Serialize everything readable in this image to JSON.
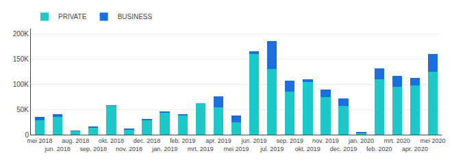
{
  "chart_data": {
    "type": "bar",
    "stacked": true,
    "categories": [
      "mei 2018",
      "jun. 2018",
      "aug. 2018",
      "sep. 2018",
      "okt. 2018",
      "nov. 2018",
      "dec. 2018",
      "jan. 2019",
      "feb. 2019",
      "mrt. 2019",
      "apr. 2019",
      "mei 2019",
      "jun. 2019",
      "jul. 2019",
      "sep. 2019",
      "okt. 2019",
      "nov. 2019",
      "dec. 2019",
      "jan. 2020",
      "feb. 2020",
      "mrt. 2020",
      "apr. 2020",
      "mei 2020"
    ],
    "series": [
      {
        "name": "PRIVATE",
        "color": "#1dc8c8",
        "values": [
          29000,
          35000,
          7000,
          13000,
          57000,
          10000,
          28000,
          44000,
          38000,
          62000,
          54000,
          25000,
          160000,
          130000,
          85000,
          105000,
          75000,
          57000,
          3000,
          110000,
          95000,
          97000,
          125000
        ]
      },
      {
        "name": "BUSINESS",
        "color": "#1b6edc",
        "values": [
          6000,
          5000,
          1000,
          3000,
          1000,
          1000,
          3000,
          2000,
          3000,
          0,
          22000,
          13000,
          5000,
          55000,
          22000,
          5000,
          15000,
          15000,
          2000,
          22000,
          22000,
          15000,
          35000
        ]
      }
    ],
    "ylim": [
      0,
      210000
    ],
    "yticks": [
      0,
      {
        "value": 50000,
        "label": "50K"
      },
      {
        "value": 100000,
        "label": "100K"
      },
      {
        "value": 150000,
        "label": "150K"
      },
      {
        "value": 200000,
        "label": "200K"
      }
    ],
    "grid": true,
    "legend": "upper left"
  }
}
